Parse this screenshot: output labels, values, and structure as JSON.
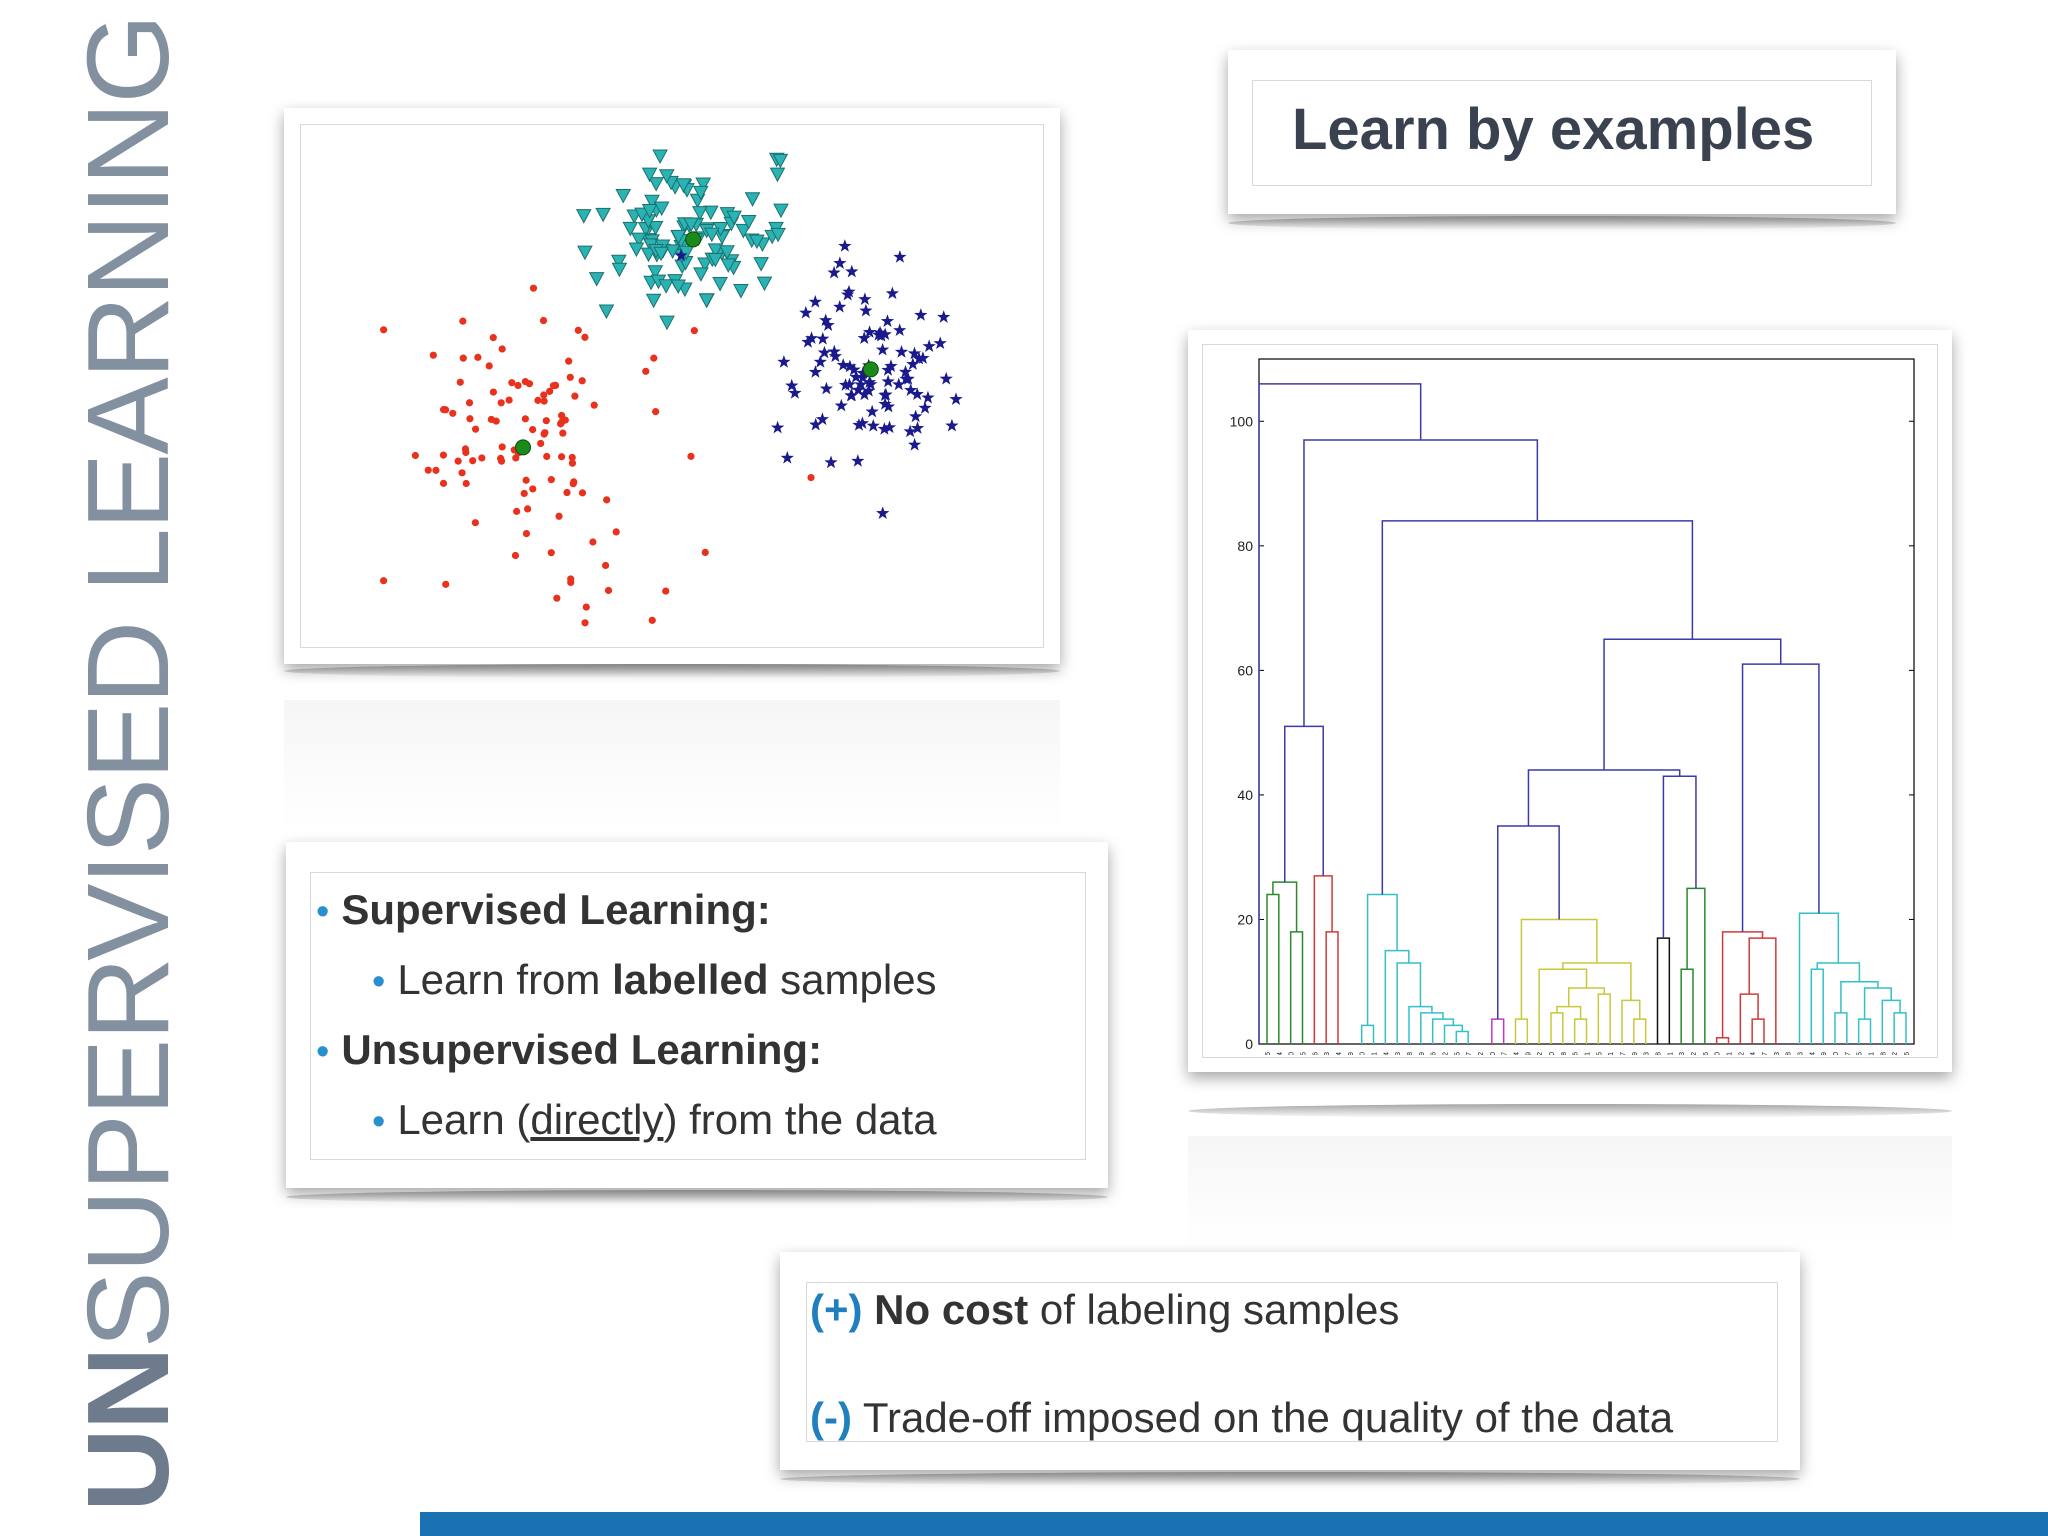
{
  "side_title": {
    "bold_part": "UN",
    "rest": "SUPERVISED LEARNING"
  },
  "headline": "Learn by examples",
  "bullets": [
    {
      "level": 1,
      "bold": "Supervised Learning:"
    },
    {
      "level": 2,
      "pre": "Learn from ",
      "bold": "labelled",
      "post": " samples"
    },
    {
      "level": 1,
      "bold": "Unsupervised Learning:"
    },
    {
      "level": 2,
      "pre": "Learn (",
      "underlined": "directly",
      "post": ") from the data"
    }
  ],
  "pros_cons": [
    {
      "sign": "(+)",
      "bold": "No cost",
      "rest": " of labeling samples"
    },
    {
      "sign": "(-)",
      "rest": " Trade-off imposed on the quality of the data"
    }
  ],
  "colors": {
    "accent_blue": "#1a72b4",
    "bullet_blue": "#2a8fcf",
    "title_gray": "#6e7b8c"
  },
  "scatter": {
    "clusters": [
      {
        "color": "#e8321e",
        "marker": "red-dot",
        "count": 110,
        "center": [
          0.3,
          0.62
        ]
      },
      {
        "color": "#2ab3b3",
        "marker": "cyan-triangle",
        "count": 110,
        "center": [
          0.53,
          0.22
        ]
      },
      {
        "color": "#1a1a8c",
        "marker": "navy-star",
        "count": 100,
        "center": [
          0.77,
          0.47
        ]
      }
    ],
    "centroid_color": "#1a8a1a"
  },
  "dendrogram": {
    "y_ticks": [
      "0",
      "20",
      "40",
      "60",
      "80",
      "100"
    ],
    "ylim": [
      0,
      110
    ],
    "leaves": [
      "15",
      "4",
      "0",
      "5",
      "6",
      "3",
      "14",
      "19",
      "50",
      "51",
      "54",
      "53",
      "48",
      "49",
      "46",
      "52",
      "45",
      "47",
      "2",
      "10",
      "17",
      "24",
      "29",
      "22",
      "20",
      "28",
      "26",
      "21",
      "25",
      "1",
      "27",
      "9",
      "23",
      "8",
      "11",
      "13",
      "12",
      "16",
      "40",
      "41",
      "42",
      "44",
      "7",
      "43",
      "18",
      "33",
      "34",
      "39",
      "30",
      "37",
      "35",
      "31",
      "38",
      "32",
      "36"
    ]
  }
}
